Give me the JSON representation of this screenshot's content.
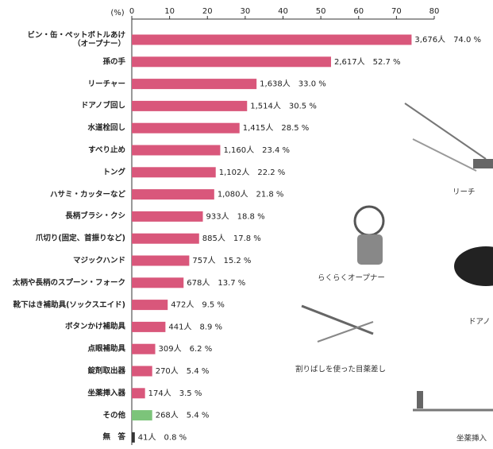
{
  "chart_data": {
    "type": "bar",
    "orientation": "horizontal",
    "axis_label": "(%)",
    "categories": [
      "ビン・缶・ペットボトルあけ\n（オープナー）",
      "孫の手",
      "リーチャー",
      "ドアノブ回し",
      "水道栓回し",
      "すべり止め",
      "トング",
      "ハサミ・カッターなど",
      "長柄ブラシ・クシ",
      "爪切り(固定、首振りなど)",
      "マジックハンド",
      "太柄や長柄のスプーン・フォーク",
      "靴下はき補助具(ソックスエイド)",
      "ボタンかけ補助具",
      "点眼補助具",
      "錠剤取出器",
      "坐薬挿入器",
      "その他",
      "無　答"
    ],
    "values": [
      74.0,
      52.7,
      33.0,
      30.5,
      28.5,
      23.4,
      22.2,
      21.8,
      18.8,
      17.8,
      15.2,
      13.7,
      9.5,
      8.9,
      6.2,
      5.4,
      3.5,
      5.4,
      0.8
    ],
    "value_labels": [
      "74.0 %",
      "52.7 %",
      "33.0 %",
      "30.5 %",
      "28.5 %",
      "23.4 %",
      "22.2 %",
      "21.8 %",
      "18.8 %",
      "17.8 %",
      "15.2 %",
      "13.7 %",
      "9.5 %",
      "8.9 %",
      "6.2 %",
      "5.4 %",
      "3.5 %",
      "5.4 %",
      "0.8 %"
    ],
    "counts": [
      "3,676人",
      "2,617人",
      "1,638人",
      "1,514人",
      "1,415人",
      "1,160人",
      "1,102人",
      "1,080人",
      "933人",
      "885人",
      "757人",
      "678人",
      "472人",
      "441人",
      "309人",
      "270人",
      "174人",
      "268人",
      "41人"
    ],
    "colors": [
      "#d9577b",
      "#d9577b",
      "#d9577b",
      "#d9577b",
      "#d9577b",
      "#d9577b",
      "#d9577b",
      "#d9577b",
      "#d9577b",
      "#d9577b",
      "#d9577b",
      "#d9577b",
      "#d9577b",
      "#d9577b",
      "#d9577b",
      "#d9577b",
      "#d9577b",
      "#7cc47a",
      "#333333"
    ],
    "xlim": [
      0,
      80
    ],
    "xticks": [
      0,
      10,
      20,
      30,
      40,
      50,
      60,
      70,
      80
    ]
  },
  "illustrations": {
    "captions": [
      "リーチ",
      "らくらくオープナー",
      "ドアノ",
      "割りばしを使った目薬差し",
      "坐薬挿入"
    ]
  }
}
